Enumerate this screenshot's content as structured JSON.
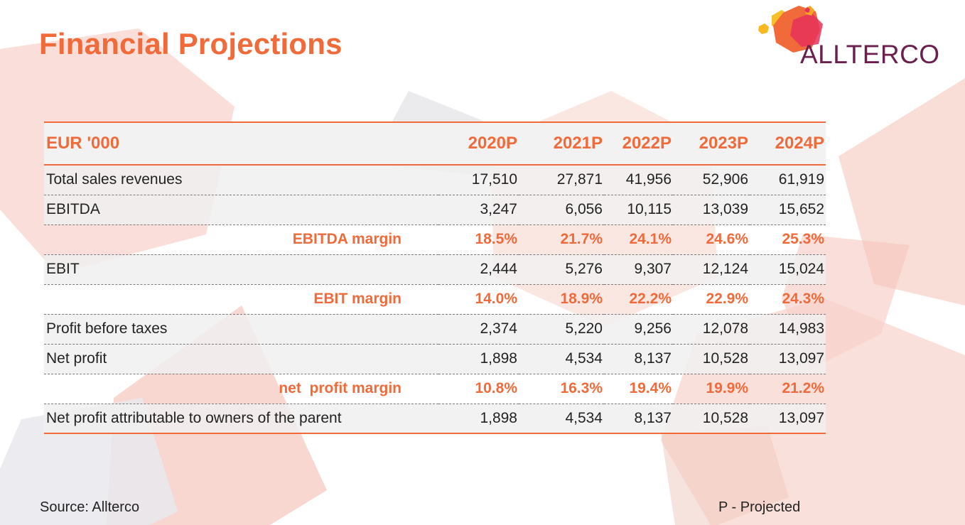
{
  "slide": {
    "title": "Financial Projections",
    "logo_text": "ALLTERCO"
  },
  "table": {
    "header": {
      "label": "EUR '000",
      "years": [
        "2020P",
        "2021P",
        "2022P",
        "2023P",
        "2024P"
      ]
    },
    "rows": [
      {
        "label": "Total sales revenues",
        "values": [
          "17,510",
          "27,871",
          "41,956",
          "52,906",
          "61,919"
        ],
        "type": "normal"
      },
      {
        "label": "EBITDA",
        "values": [
          "3,247",
          "6,056",
          "10,115",
          "13,039",
          "15,652"
        ],
        "type": "normal"
      },
      {
        "label": "EBITDA margin",
        "values": [
          "18.5%",
          "21.7%",
          "24.1%",
          "24.6%",
          "25.3%"
        ],
        "type": "margin"
      },
      {
        "label": "EBIT",
        "values": [
          "2,444",
          "5,276",
          "9,307",
          "12,124",
          "15,024"
        ],
        "type": "normal"
      },
      {
        "label": "EBIT margin",
        "values": [
          "14.0%",
          "18.9%",
          "22.2%",
          "22.9%",
          "24.3%"
        ],
        "type": "margin"
      },
      {
        "label": "Profit before taxes",
        "values": [
          "2,374",
          "5,220",
          "9,256",
          "12,078",
          "14,983"
        ],
        "type": "normal"
      },
      {
        "label": "Net profit",
        "values": [
          "1,898",
          "4,534",
          "8,137",
          "10,528",
          "13,097"
        ],
        "type": "normal"
      },
      {
        "label": "net  profit margin",
        "values": [
          "10.8%",
          "16.3%",
          "19.4%",
          "19.9%",
          "21.2%"
        ],
        "type": "margin"
      },
      {
        "label": "Net profit attributable to owners of the parent",
        "values": [
          "1,898",
          "4,534",
          "8,137",
          "10,528",
          "13,097"
        ],
        "type": "normal"
      }
    ]
  },
  "footer": {
    "source": "Source: Allterco",
    "note": "P - Projected"
  },
  "colors": {
    "accent": "#f06a3a",
    "logo_text": "#6b1f4e",
    "body_text": "#222222"
  }
}
